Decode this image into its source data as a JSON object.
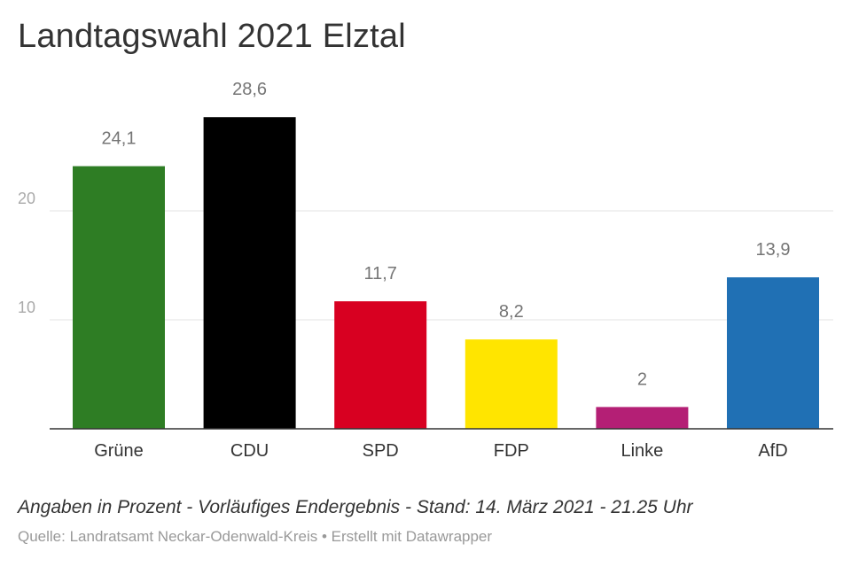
{
  "chart_data": {
    "type": "bar",
    "title": "Landtagswahl 2021 Elztal",
    "categories": [
      "Grüne",
      "CDU",
      "SPD",
      "FDP",
      "Linke",
      "AfD"
    ],
    "values": [
      24.1,
      28.6,
      11.7,
      8.2,
      2,
      13.9
    ],
    "value_labels": [
      "24,1",
      "28,6",
      "11,7",
      "8,2",
      "2",
      "13,9"
    ],
    "colors": [
      "#2e7d24",
      "#000000",
      "#d80021",
      "#ffe500",
      "#b41f75",
      "#2070b4"
    ],
    "ylim": [
      0,
      30
    ],
    "yticks": [
      10,
      20
    ],
    "ytick_labels": [
      "10",
      "20"
    ],
    "grid": true,
    "xlabel": "",
    "ylabel": ""
  },
  "footer": {
    "notes": "Angaben in Prozent - Vorläufiges Endergebnis - Stand: 14. März 2021 - 21.25 Uhr",
    "source": "Quelle: Landratsamt Neckar-Odenwald-Kreis • Erstellt mit Datawrapper"
  }
}
